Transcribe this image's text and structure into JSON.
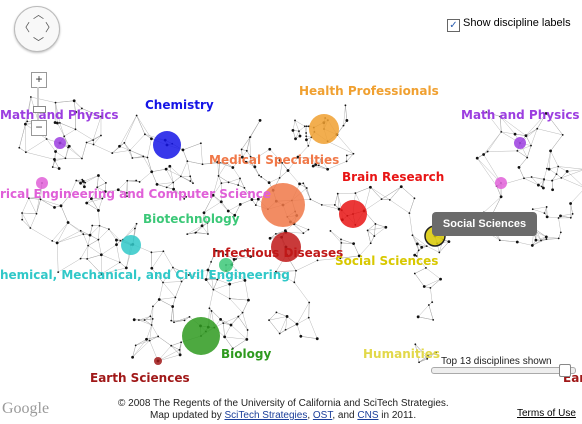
{
  "controls": {
    "labels_toggle": "Show discipline labels",
    "labels_toggle_checked": true,
    "zoom_in": "+",
    "zoom_out": "−",
    "slider_text": "Top 13 disciplines shown"
  },
  "tooltip": "Social Sciences",
  "disciplines": [
    {
      "id": "math-physics",
      "label": "Math and Physics",
      "color": "#9c3ee0"
    },
    {
      "id": "chemistry",
      "label": "Chemistry",
      "color": "#1515e6"
    },
    {
      "id": "health",
      "label": "Health Professionals",
      "color": "#f0a030"
    },
    {
      "id": "medical",
      "label": "Medical Specialties",
      "color": "#f07848"
    },
    {
      "id": "brain",
      "label": "Brain Research",
      "color": "#e81414"
    },
    {
      "id": "eecs",
      "label": "rical Engineering and Computer Science",
      "color": "#e060d8"
    },
    {
      "id": "biotech",
      "label": "Biotechnology",
      "color": "#3cc878"
    },
    {
      "id": "infectious",
      "label": "Infectious Diseases",
      "color": "#c01818"
    },
    {
      "id": "social",
      "label": "Social Sciences",
      "color": "#d8c800"
    },
    {
      "id": "chem-mech-civil",
      "label": "hemical, Mechanical, and Civil Engineering",
      "color": "#30c8c8"
    },
    {
      "id": "biology",
      "label": "Biology",
      "color": "#2e9a1e"
    },
    {
      "id": "humanities",
      "label": "Humanities",
      "color": "#e2d84a"
    },
    {
      "id": "earth",
      "label": "Earth Sciences",
      "color": "#a01818"
    },
    {
      "id": "math-physics-2",
      "label": "Math and Physics",
      "color": "#9c3ee0"
    },
    {
      "id": "earth-2",
      "label": "Earth",
      "color": "#a01818"
    }
  ],
  "footer": {
    "copyright": "© 2008 The Regents of the University of California and SciTech Strategies.",
    "updated_prefix": "Map updated by",
    "link1": "SciTech Strategies",
    "sep1": ",",
    "link2": "OST",
    "sep2": ", and",
    "link3": "CNS",
    "suffix": "in 2011.",
    "terms": "Terms of Use",
    "google": "Google"
  }
}
